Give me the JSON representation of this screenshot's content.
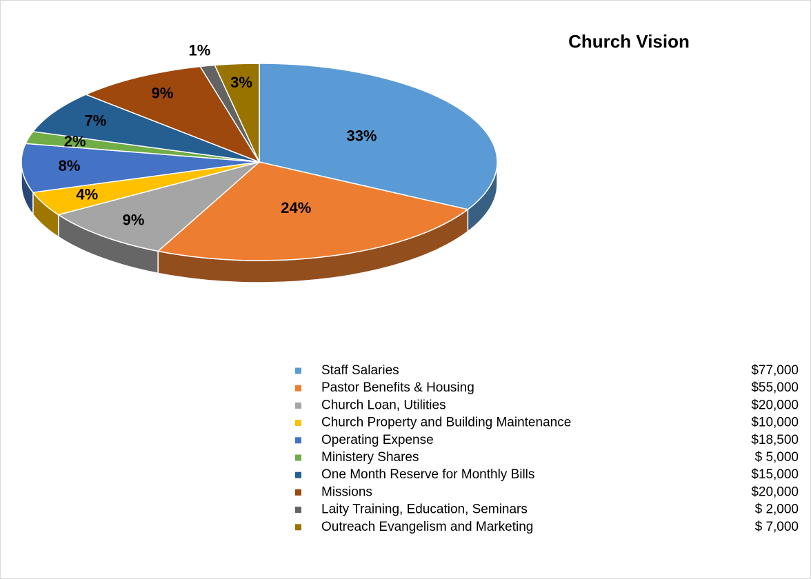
{
  "chart_data": {
    "type": "pie",
    "title": "Church Vision",
    "categories": [
      "Staff Salaries",
      "Pastor Benefits & Housing",
      "Church Loan, Utilities",
      "Church Property and Building Maintenance",
      "Operating Expense",
      "Ministery Shares",
      "One Month Reserve for Monthly Bills",
      "Missions",
      "Laity Training, Education, Seminars",
      "Outreach Evangelism and Marketing"
    ],
    "values": [
      33,
      24,
      9,
      4,
      8,
      2,
      7,
      9,
      1,
      3
    ],
    "value_labels": [
      "33%",
      "24%",
      "9%",
      "4%",
      "8%",
      "2%",
      "7%",
      "9%",
      "1%",
      "3%"
    ],
    "amounts": [
      "$77,000",
      "$55,000",
      "$20,000",
      "$10,000",
      "$18,500",
      "$ 5,000",
      "$15,000",
      "$20,000",
      "$ 2,000",
      "$ 7,000"
    ],
    "colors": [
      "#5b9bd5",
      "#ed7d31",
      "#a5a5a5",
      "#ffc000",
      "#4472c4",
      "#70ad47",
      "#255e91",
      "#9e480e",
      "#636363",
      "#997300"
    ]
  }
}
